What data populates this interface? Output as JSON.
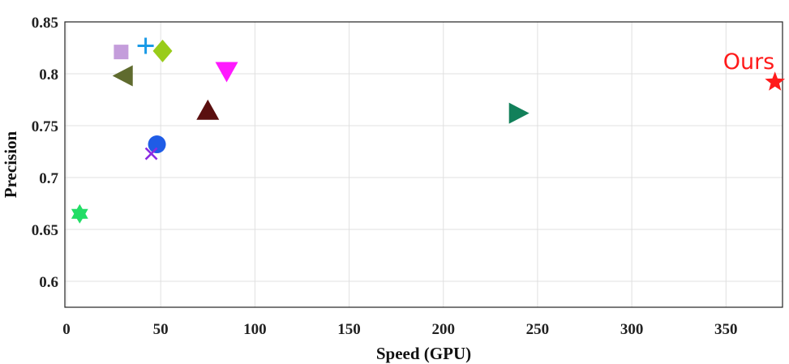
{
  "chart_data": {
    "type": "scatter",
    "title": "",
    "xlabel": "Speed (GPU)",
    "ylabel": "Precision",
    "xlim": [
      0,
      380
    ],
    "ylim": [
      0.575,
      0.85
    ],
    "xticks": [
      0,
      50,
      100,
      150,
      200,
      250,
      300,
      350
    ],
    "yticks": [
      0.6,
      0.65,
      0.7,
      0.75,
      0.8,
      0.85
    ],
    "ytick_labels": [
      "0.6",
      "0.65",
      "0.7",
      "0.75",
      "0.8",
      "0.85"
    ],
    "grid": true,
    "legend": "none",
    "points": [
      {
        "x": 29,
        "y": 0.821,
        "marker": "square",
        "color": "#c49ddb"
      },
      {
        "x": 42,
        "y": 0.827,
        "marker": "plus",
        "color": "#1a9ae6"
      },
      {
        "x": 51,
        "y": 0.822,
        "marker": "diamond",
        "color": "#99cc1a"
      },
      {
        "x": 30,
        "y": 0.798,
        "marker": "triangle-left",
        "color": "#5f6b2e"
      },
      {
        "x": 85,
        "y": 0.802,
        "marker": "triangle-down",
        "color": "#ff19ff"
      },
      {
        "x": 75,
        "y": 0.765,
        "marker": "triangle-up",
        "color": "#5a0f0f"
      },
      {
        "x": 48,
        "y": 0.732,
        "marker": "circle",
        "color": "#1f5ce6"
      },
      {
        "x": 45,
        "y": 0.723,
        "marker": "x",
        "color": "#8a2be2"
      },
      {
        "x": 7,
        "y": 0.665,
        "marker": "hexagram",
        "color": "#22dd66"
      },
      {
        "x": 240,
        "y": 0.762,
        "marker": "triangle-right",
        "color": "#12805a"
      },
      {
        "x": 376,
        "y": 0.792,
        "marker": "star",
        "color": "#ff1a1a",
        "label": "Ours"
      }
    ]
  }
}
